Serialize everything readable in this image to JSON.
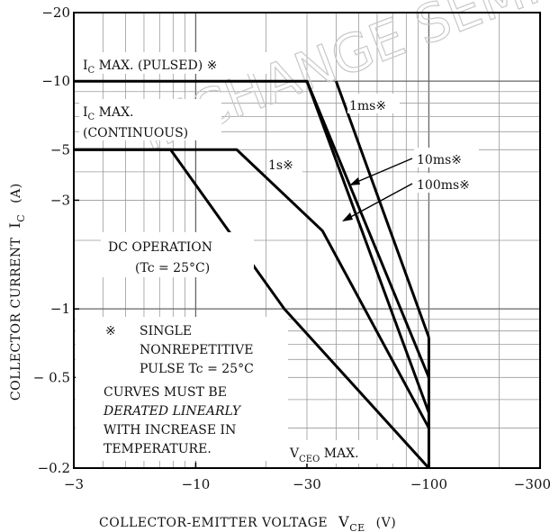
{
  "chart_data": {
    "type": "line",
    "xscale": "log",
    "yscale": "log",
    "xlim": [
      -3,
      -300
    ],
    "ylim": [
      -0.2,
      -20
    ],
    "grid": true,
    "x_ticks": [
      {
        "v": -3,
        "label": "−3"
      },
      {
        "v": -10,
        "label": "−10"
      },
      {
        "v": -30,
        "label": "−30"
      },
      {
        "v": -100,
        "label": "−100"
      },
      {
        "v": -300,
        "label": "−300"
      }
    ],
    "y_ticks": [
      {
        "v": -20,
        "label": "−20"
      },
      {
        "v": -10,
        "label": "−10"
      },
      {
        "v": -5,
        "label": "−5"
      },
      {
        "v": -3,
        "label": "−3"
      },
      {
        "v": -1,
        "label": "−1"
      },
      {
        "v": -0.5,
        "label": "− 0.5"
      },
      {
        "v": -0.2,
        "label": "−0.2"
      }
    ],
    "xlabel": {
      "main": "COLLECTOR-EMITTER VOLTAGE",
      "sym": "V",
      "sub": "CE",
      "unit": "(V)"
    },
    "ylabel": {
      "main": "COLLECTOR CURRENT",
      "sym": "I",
      "sub": "C",
      "unit": "(A)"
    },
    "series": [
      {
        "name": "DC OPERATION",
        "points": [
          [
            -3,
            -5
          ],
          [
            -7.8,
            -5
          ],
          [
            -24,
            -1
          ],
          [
            -100,
            -0.2
          ]
        ]
      },
      {
        "name": "1s※",
        "points": [
          [
            -3,
            -5
          ],
          [
            -15,
            -5
          ],
          [
            -35,
            -2.2
          ],
          [
            -100,
            -0.3
          ]
        ]
      },
      {
        "name": "10ms※",
        "points": [
          [
            -3,
            -10
          ],
          [
            -30,
            -10
          ],
          [
            -100,
            -0.5
          ]
        ]
      },
      {
        "name": "100ms※",
        "points": [
          [
            -30,
            -10
          ],
          [
            -100,
            -0.35
          ]
        ]
      },
      {
        "name": "1ms※",
        "points": [
          [
            -40,
            -10
          ],
          [
            -100,
            -0.75
          ]
        ]
      }
    ],
    "vceo_limit": [
      [
        -100,
        -0.75
      ],
      [
        -100,
        -0.2
      ]
    ],
    "annotations": {
      "ic_pulsed": {
        "main": "I",
        "sub": "C",
        "rest": " MAX. (PULSED) ※"
      },
      "ic_cont_1": {
        "main": "I",
        "sub": "C",
        "rest": " MAX."
      },
      "ic_cont_2": "(CONTINUOUS)",
      "dc_1": "DC OPERATION",
      "dc_2": "(Tc = 25°C)",
      "s1": "1s※",
      "ms1": "1ms※",
      "ms10": "10ms※",
      "ms100": "100ms※",
      "vceo": {
        "main": "V",
        "sub": "CEO",
        "rest": " MAX."
      }
    },
    "note": {
      "mark": "※",
      "lines": [
        "SINGLE",
        "NONREPETITIVE",
        "PULSE  Tc = 25°C",
        "CURVES MUST BE",
        "DERATED LINEARLY",
        "WITH INCREASE IN",
        "TEMPERATURE."
      ]
    },
    "watermark": "INCHANGE SEMI"
  }
}
